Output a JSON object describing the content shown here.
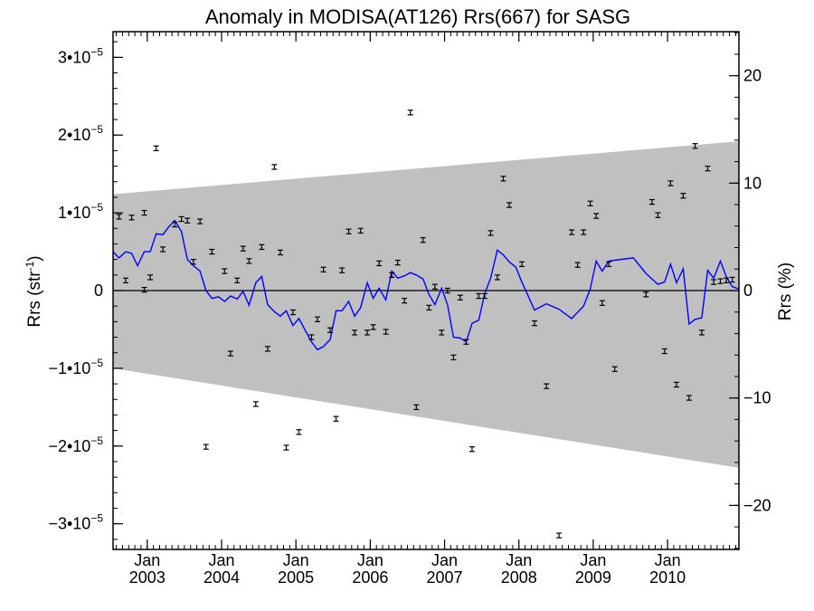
{
  "chart_data": {
    "type": "line",
    "title": "Anomaly in MODISA(AT126) Rrs(667) for SASG",
    "ylabel_left": "Rrs (str",
    "ylabel_left_sup": "-1",
    "ylabel_left_close": ")",
    "ylabel_right": "Rrs (%)",
    "xlim": [
      2002.54,
      2010.96
    ],
    "ylim_left": [
      -3.33e-05,
      3.33e-05
    ],
    "ylim_right": [
      -24.1,
      24.1
    ],
    "y_ticks_left": [
      {
        "value": 3e-05,
        "mantissa": "3•10",
        "exp": "−5"
      },
      {
        "value": 2e-05,
        "mantissa": "2•10",
        "exp": "−5"
      },
      {
        "value": 1e-05,
        "mantissa": "1•10",
        "exp": "−5"
      },
      {
        "value": 0,
        "mantissa": "0",
        "exp": ""
      },
      {
        "value": -1e-05,
        "mantissa": "−1•10",
        "exp": "−5"
      },
      {
        "value": -2e-05,
        "mantissa": "−2•10",
        "exp": "−5"
      },
      {
        "value": -3e-05,
        "mantissa": "−3•10",
        "exp": "−5"
      }
    ],
    "y_ticks_right": [
      {
        "value": 20,
        "label": "20"
      },
      {
        "value": 10,
        "label": "10"
      },
      {
        "value": 0,
        "label": "0"
      },
      {
        "value": -10,
        "label": "−10"
      },
      {
        "value": -20,
        "label": "−20"
      }
    ],
    "x_ticks": [
      {
        "value": 2003.0,
        "month": "Jan",
        "year": "2003"
      },
      {
        "value": 2004.0,
        "month": "Jan",
        "year": "2004"
      },
      {
        "value": 2005.0,
        "month": "Jan",
        "year": "2005"
      },
      {
        "value": 2006.0,
        "month": "Jan",
        "year": "2006"
      },
      {
        "value": 2007.0,
        "month": "Jan",
        "year": "2007"
      },
      {
        "value": 2008.0,
        "month": "Jan",
        "year": "2008"
      },
      {
        "value": 2009.0,
        "month": "Jan",
        "year": "2009"
      },
      {
        "value": 2010.0,
        "month": "Jan",
        "year": "2010"
      }
    ],
    "uncertainty_band": {
      "color": "#c0c0c0",
      "x": [
        2002.54,
        2010.96
      ],
      "upper": [
        1.24e-05,
        1.92e-05
      ],
      "lower": [
        -1e-05,
        -2.28e-05
      ]
    },
    "zero_line": 0,
    "series": [
      {
        "type": "line",
        "color": "#0000ff",
        "x": [
          2002.54,
          2002.62,
          2002.71,
          2002.79,
          2002.87,
          2002.96,
          2003.04,
          2003.12,
          2003.21,
          2003.29,
          2003.37,
          2003.46,
          2003.54,
          2003.62,
          2003.71,
          2003.79,
          2003.87,
          2003.96,
          2004.04,
          2004.12,
          2004.21,
          2004.29,
          2004.37,
          2004.46,
          2004.54,
          2004.62,
          2004.71,
          2004.79,
          2004.87,
          2004.96,
          2005.04,
          2005.12,
          2005.21,
          2005.29,
          2005.37,
          2005.46,
          2005.54,
          2005.62,
          2005.71,
          2005.79,
          2005.87,
          2005.96,
          2006.04,
          2006.12,
          2006.21,
          2006.29,
          2006.37,
          2006.46,
          2006.54,
          2006.62,
          2006.71,
          2006.79,
          2006.87,
          2006.96,
          2007.04,
          2007.12,
          2007.21,
          2007.29,
          2007.37,
          2007.46,
          2007.54,
          2007.62,
          2007.71,
          2007.79,
          2007.87,
          2007.96,
          2008.04,
          2008.21,
          2008.37,
          2008.54,
          2008.71,
          2008.87,
          2008.96,
          2009.04,
          2009.12,
          2009.21,
          2009.29,
          2009.54,
          2009.71,
          2009.79,
          2009.87,
          2009.96,
          2010.04,
          2010.12,
          2010.21,
          2010.29,
          2010.37,
          2010.46,
          2010.54,
          2010.62,
          2010.71,
          2010.79,
          2010.87,
          2010.96
        ],
        "y": [
          5e-06,
          4.2e-06,
          5e-06,
          4.8e-06,
          3.2e-06,
          5e-06,
          5e-06,
          7.3e-06,
          7.2e-06,
          8.2e-06,
          9e-06,
          7.6e-06,
          4e-06,
          3.2e-06,
          2.5e-06,
          0.0,
          -1e-06,
          -8e-07,
          -1.4e-06,
          -7e-07,
          -1.1e-06,
          -1e-07,
          -1.9e-06,
          1e-06,
          1.8e-06,
          -1.8e-06,
          -2.7e-06,
          -3.3e-06,
          -2.6e-06,
          -4.5e-06,
          -3.6e-06,
          -5e-06,
          -6.6e-06,
          -7.6e-06,
          -7.2e-06,
          -6.3e-06,
          -2.6e-06,
          -2.6e-06,
          -1.4e-06,
          -3.3e-06,
          -2.2e-06,
          1e-06,
          -1e-06,
          3e-07,
          -1.2e-06,
          2.5e-06,
          1.6e-06,
          1.9e-06,
          2.3e-06,
          2e-06,
          1.5e-06,
          -5e-07,
          -1.8e-06,
          3e-07,
          -1.8e-06,
          -6e-06,
          -6.1e-06,
          -6.6e-06,
          -4.2e-06,
          -3.8e-06,
          -4e-07,
          1.6e-06,
          5.2e-06,
          4.6e-06,
          3.7e-06,
          3e-06,
          1.1e-06,
          -2.5e-06,
          -1.7e-06,
          -2.4e-06,
          -3.6e-06,
          -2e-06,
          2e-07,
          3.8e-06,
          2.5e-06,
          3.8e-06,
          3.9e-06,
          4.2e-06,
          2.2e-06,
          1.5e-06,
          8e-07,
          1.1e-06,
          3.4e-06,
          1e-06,
          2.8e-06,
          -4.3e-06,
          -3.7e-06,
          -3.5e-06,
          2.6e-06,
          1.6e-06,
          3.8e-06,
          1.8e-06,
          5e-07,
          2e-07
        ]
      },
      {
        "type": "errorbar",
        "color": "#000000",
        "error": 3e-07,
        "x": [
          2002.62,
          2002.71,
          2002.79,
          2002.96,
          2002.96,
          2003.04,
          2003.12,
          2003.21,
          2003.37,
          2003.46,
          2003.54,
          2003.62,
          2003.71,
          2003.79,
          2003.87,
          2004.04,
          2004.12,
          2004.21,
          2004.29,
          2004.37,
          2004.46,
          2004.54,
          2004.62,
          2004.71,
          2004.79,
          2004.87,
          2004.96,
          2005.04,
          2005.21,
          2005.29,
          2005.37,
          2005.46,
          2005.54,
          2005.62,
          2005.71,
          2005.79,
          2005.87,
          2005.96,
          2006.04,
          2006.12,
          2006.21,
          2006.29,
          2006.37,
          2006.46,
          2006.54,
          2006.62,
          2006.71,
          2006.79,
          2006.87,
          2006.96,
          2007.04,
          2007.12,
          2007.21,
          2007.29,
          2007.37,
          2007.46,
          2007.54,
          2007.62,
          2007.71,
          2007.79,
          2007.87,
          2008.04,
          2008.21,
          2008.37,
          2008.54,
          2008.71,
          2008.79,
          2008.87,
          2008.96,
          2009.04,
          2009.12,
          2009.21,
          2009.29,
          2009.71,
          2009.79,
          2009.87,
          2009.96,
          2010.04,
          2010.12,
          2010.21,
          2010.29,
          2010.37,
          2010.46,
          2010.54,
          2010.62,
          2010.71,
          2010.79,
          2010.87
        ],
        "y": [
          9.5e-06,
          1.3e-06,
          9.4e-06,
          1e-05,
          1e-07,
          1.7e-06,
          1.83e-05,
          5.3e-06,
          8.5e-06,
          9.2e-06,
          9e-06,
          3.7e-06,
          8.9e-06,
          -2.01e-05,
          5e-06,
          2.5e-06,
          -8.1e-06,
          1.3e-06,
          5.4e-06,
          3.8e-06,
          -1.46e-05,
          5.6e-06,
          -7.5e-06,
          1.59e-05,
          4.9e-06,
          -2.02e-05,
          -2.8e-06,
          -1.82e-05,
          -6e-06,
          -3.7e-06,
          2.7e-06,
          -5.1e-06,
          -1.65e-05,
          2.6e-06,
          7.6e-06,
          -5.4e-06,
          7.7e-06,
          -5.4e-06,
          -4.7e-06,
          3.5e-06,
          -5.3e-06,
          2e-06,
          3.6e-06,
          -1.3e-06,
          2.29e-05,
          -1.5e-05,
          6.5e-06,
          -2.2e-06,
          5e-07,
          -5.4e-06,
          0.0,
          -8.6e-06,
          -9e-07,
          -6.6e-06,
          -2.04e-05,
          -7e-07,
          -7e-07,
          7.4e-06,
          1.7e-06,
          1.44e-05,
          1.1e-05,
          3.4e-06,
          -4.2e-06,
          -1.23e-05,
          -3.15e-05,
          7.5e-06,
          3.3e-06,
          7.5e-06,
          1.12e-05,
          9.6e-06,
          -1.6e-06,
          3.4e-06,
          -1.01e-05,
          -5e-07,
          1.14e-05,
          9.7e-06,
          -7.8e-06,
          1.38e-05,
          -1.21e-05,
          1.22e-05,
          -1.38e-05,
          1.86e-05,
          -5.4e-06,
          1.57e-05,
          1.1e-06,
          1.2e-06,
          1.3e-06,
          1.4e-06
        ]
      }
    ]
  }
}
